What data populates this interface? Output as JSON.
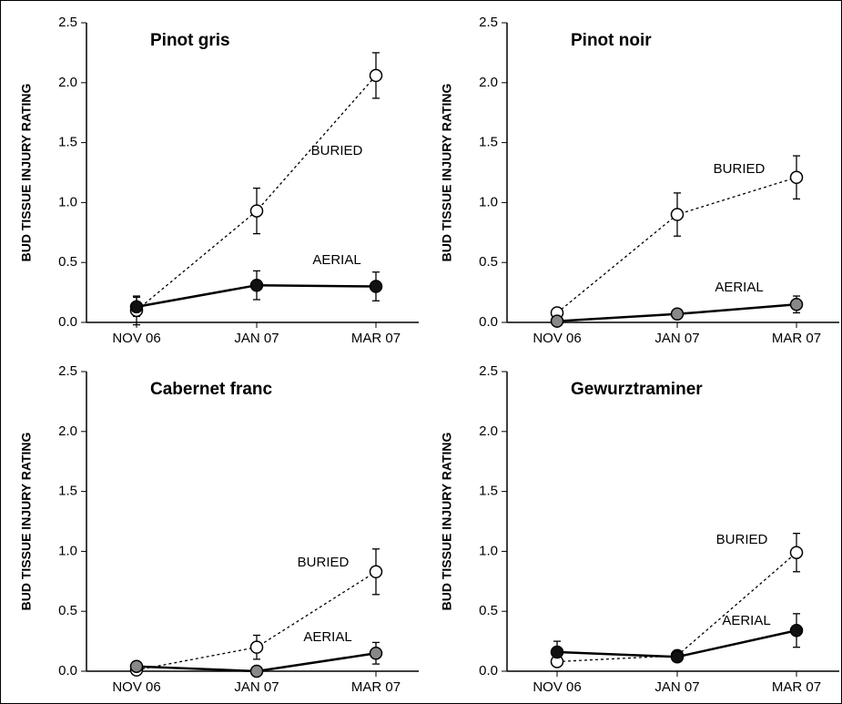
{
  "chart_data": [
    {
      "type": "line",
      "title": "Pinot gris",
      "ylabel": "BUD TISSUE INJURY RATING",
      "categories": [
        "NOV 06",
        "JAN 07",
        "MAR 07"
      ],
      "ylim": [
        0,
        2.5
      ],
      "yticks": [
        {
          "value": 0,
          "label": "0.0"
        },
        0.5,
        {
          "value": 1,
          "label": "1.0"
        },
        1.5,
        {
          "value": 2,
          "label": "2.0"
        },
        2.5
      ],
      "series": [
        {
          "name": "BURIED",
          "color": "#ffffff",
          "line_style": "dashed",
          "values": [
            0.1,
            0.93,
            2.06
          ],
          "errors": [
            0.12,
            0.19,
            0.19
          ]
        },
        {
          "name": "AERIAL",
          "color": "#111111",
          "line_style": "solid",
          "values": [
            0.13,
            0.31,
            0.3
          ],
          "errors": [
            0.08,
            0.12,
            0.12
          ]
        }
      ]
    },
    {
      "type": "line",
      "title": "Pinot noir",
      "ylabel": "BUD TISSUE INJURY RATING",
      "categories": [
        "NOV 06",
        "JAN 07",
        "MAR 07"
      ],
      "ylim": [
        0,
        2.5
      ],
      "yticks": [
        {
          "value": 0,
          "label": "0.0"
        },
        0.5,
        {
          "value": 1,
          "label": "1.0"
        },
        1.5,
        {
          "value": 2,
          "label": "2.0"
        },
        2.5
      ],
      "series": [
        {
          "name": "BURIED",
          "color": "#ffffff",
          "line_style": "dashed",
          "values": [
            0.08,
            0.9,
            1.21
          ],
          "errors": [
            0.02,
            0.18,
            0.18
          ]
        },
        {
          "name": "AERIAL",
          "color": "#888888",
          "line_style": "solid",
          "values": [
            0.01,
            0.07,
            0.15
          ],
          "errors": [
            0.02,
            0.03,
            0.07
          ]
        }
      ]
    },
    {
      "type": "line",
      "title": "Cabernet franc",
      "ylabel": "BUD TISSUE INJURY RATING",
      "categories": [
        "NOV 06",
        "JAN 07",
        "MAR 07"
      ],
      "ylim": [
        0,
        2.5
      ],
      "yticks": [
        {
          "value": 0,
          "label": "0.0"
        },
        0.5,
        {
          "value": 1,
          "label": "1.0"
        },
        1.5,
        {
          "value": 2,
          "label": "2.0"
        },
        2.5
      ],
      "series": [
        {
          "name": "BURIED",
          "color": "#ffffff",
          "line_style": "dashed",
          "values": [
            0.01,
            0.2,
            0.83
          ],
          "errors": [
            0.02,
            0.1,
            0.19
          ]
        },
        {
          "name": "AERIAL",
          "color": "#888888",
          "line_style": "solid",
          "values": [
            0.04,
            0.0,
            0.15
          ],
          "errors": [
            0.03,
            0.02,
            0.09
          ]
        }
      ]
    },
    {
      "type": "line",
      "title": "Gewurztraminer",
      "ylabel": "BUD TISSUE INJURY RATING",
      "categories": [
        "NOV 06",
        "JAN 07",
        "MAR 07"
      ],
      "ylim": [
        0,
        2.5
      ],
      "yticks": [
        {
          "value": 0,
          "label": "0.0"
        },
        0.5,
        {
          "value": 1,
          "label": "1.0"
        },
        1.5,
        {
          "value": 2,
          "label": "2.0"
        },
        2.5
      ],
      "series": [
        {
          "name": "BURIED",
          "color": "#ffffff",
          "line_style": "dashed",
          "values": [
            0.08,
            0.13,
            0.99
          ],
          "errors": [
            0.03,
            0.03,
            0.16
          ]
        },
        {
          "name": "AERIAL",
          "color": "#111111",
          "line_style": "solid",
          "values": [
            0.16,
            0.12,
            0.34
          ],
          "errors": [
            0.09,
            0.04,
            0.14
          ]
        }
      ]
    }
  ]
}
